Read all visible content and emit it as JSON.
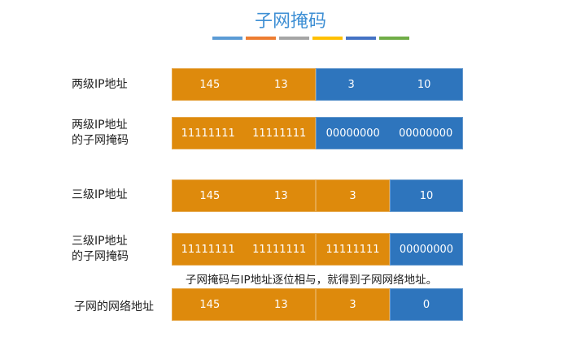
{
  "title": "子网掩码",
  "color_bars": [
    "#5b9bd5",
    "#ed7d31",
    "#a5a5a5",
    "#ffc000",
    "#4472c4",
    "#70ad47"
  ],
  "caption": "子网掩码与IP地址逐位相与，就得到子网网络地址。",
  "rows": [
    {
      "label": "两级IP地址",
      "segments": [
        {
          "color": "orange",
          "values": [
            "145",
            "13"
          ]
        },
        {
          "color": "blue",
          "values": [
            "3",
            "10"
          ]
        }
      ]
    },
    {
      "label": "两级IP地址\n的子网掩码",
      "segments": [
        {
          "color": "orange",
          "values": [
            "11111111",
            "11111111"
          ]
        },
        {
          "color": "blue",
          "values": [
            "00000000",
            "00000000"
          ]
        }
      ]
    },
    {
      "label": "三级IP地址",
      "segments": [
        {
          "color": "orange",
          "values": [
            "145",
            "13"
          ]
        },
        {
          "color": "orange",
          "values": [
            "3"
          ]
        },
        {
          "color": "blue",
          "values": [
            "10"
          ]
        }
      ]
    },
    {
      "label": "三级IP地址\n的子网掩码",
      "segments": [
        {
          "color": "orange",
          "values": [
            "11111111",
            "11111111"
          ]
        },
        {
          "color": "orange",
          "values": [
            "11111111"
          ]
        },
        {
          "color": "blue",
          "values": [
            "00000000"
          ]
        }
      ]
    },
    {
      "label": "子网的网络地址",
      "segments": [
        {
          "color": "orange",
          "values": [
            "145",
            "13"
          ]
        },
        {
          "color": "orange",
          "values": [
            "3"
          ]
        },
        {
          "color": "blue",
          "values": [
            "0"
          ]
        }
      ]
    }
  ]
}
